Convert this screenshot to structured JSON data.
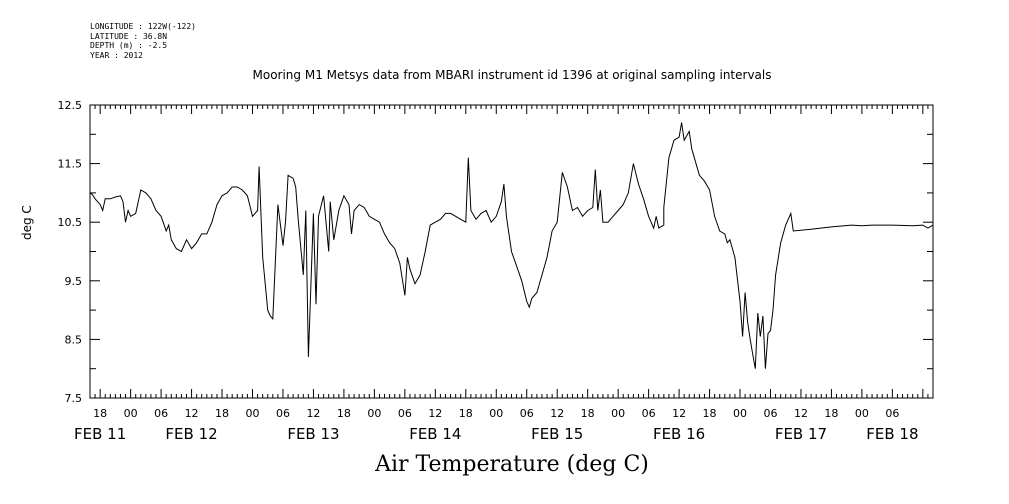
{
  "meta": {
    "longitude": "LONGITUDE : 122W(-122)",
    "latitude": "LATITUDE : 36.8N",
    "depth": "DEPTH (m) : -2.5",
    "year": "YEAR : 2012"
  },
  "chart_data": {
    "type": "line",
    "title": "Mooring M1 Metsys data from MBARI instrument id 1396 at original sampling intervals",
    "xlabel": "Air Temperature (deg C)",
    "ylabel": "deg C",
    "ylim": [
      7.5,
      12.5
    ],
    "xlim": [
      16,
      182
    ],
    "yticks": [
      7.5,
      8.5,
      9.5,
      10.5,
      11.5,
      12.5
    ],
    "ytick_labels": [
      "7.5",
      "8.5",
      "9.5",
      "10.5",
      "11.5",
      "12.5"
    ],
    "xtick_hour_labels": [
      "18",
      "00",
      "06",
      "12",
      "18",
      "00",
      "06",
      "12",
      "18",
      "00",
      "06",
      "12",
      "18",
      "00",
      "06",
      "12",
      "18",
      "00",
      "06",
      "12",
      "18",
      "00",
      "06",
      "12",
      "18",
      "00",
      "06"
    ],
    "date_labels": [
      {
        "text": "FEB 11",
        "x": 18
      },
      {
        "text": "FEB 12",
        "x": 36
      },
      {
        "text": "FEB 13",
        "x": 60
      },
      {
        "text": "FEB 14",
        "x": 84
      },
      {
        "text": "FEB 15",
        "x": 108
      },
      {
        "text": "FEB 16",
        "x": 132
      },
      {
        "text": "FEB 17",
        "x": 156
      },
      {
        "text": "FEB 18",
        "x": 174
      }
    ],
    "grid": false,
    "series": [
      {
        "values": [
          [
            16,
            11.0
          ],
          [
            16.5,
            10.97
          ],
          [
            17,
            10.9
          ],
          [
            17.5,
            10.85
          ],
          [
            18,
            10.8
          ],
          [
            18.5,
            10.7
          ],
          [
            19,
            10.9
          ],
          [
            20,
            10.9
          ],
          [
            21,
            10.93
          ],
          [
            22,
            10.95
          ],
          [
            22.5,
            10.85
          ],
          [
            23,
            10.5
          ],
          [
            23.5,
            10.7
          ],
          [
            24,
            10.6
          ],
          [
            25,
            10.65
          ],
          [
            26,
            11.05
          ],
          [
            27,
            11.0
          ],
          [
            28,
            10.9
          ],
          [
            29,
            10.7
          ],
          [
            30,
            10.6
          ],
          [
            31,
            10.35
          ],
          [
            31.5,
            10.45
          ],
          [
            32,
            10.2
          ],
          [
            33,
            10.05
          ],
          [
            34,
            10.0
          ],
          [
            35,
            10.2
          ],
          [
            36,
            10.05
          ],
          [
            37,
            10.15
          ],
          [
            38,
            10.3
          ],
          [
            39,
            10.3
          ],
          [
            40,
            10.5
          ],
          [
            41,
            10.8
          ],
          [
            42,
            10.95
          ],
          [
            43,
            11.0
          ],
          [
            44,
            11.1
          ],
          [
            45,
            11.1
          ],
          [
            46,
            11.05
          ],
          [
            47,
            10.95
          ],
          [
            48,
            10.6
          ],
          [
            49,
            10.7
          ],
          [
            49.3,
            11.45
          ],
          [
            50,
            9.9
          ],
          [
            51,
            9.0
          ],
          [
            51.5,
            8.9
          ],
          [
            52,
            8.85
          ],
          [
            53,
            10.8
          ],
          [
            54,
            10.1
          ],
          [
            54.5,
            10.5
          ],
          [
            55,
            11.3
          ],
          [
            56,
            11.25
          ],
          [
            56.5,
            11.1
          ],
          [
            57,
            10.55
          ],
          [
            58,
            9.6
          ],
          [
            58.5,
            10.7
          ],
          [
            59,
            8.2
          ],
          [
            60,
            10.65
          ],
          [
            60.5,
            9.1
          ],
          [
            61,
            10.6
          ],
          [
            62,
            10.95
          ],
          [
            63,
            10.0
          ],
          [
            63.3,
            10.85
          ],
          [
            64,
            10.2
          ],
          [
            65,
            10.7
          ],
          [
            66,
            10.95
          ],
          [
            67,
            10.8
          ],
          [
            67.5,
            10.3
          ],
          [
            68,
            10.7
          ],
          [
            69,
            10.8
          ],
          [
            70,
            10.75
          ],
          [
            71,
            10.6
          ],
          [
            72,
            10.55
          ],
          [
            73,
            10.5
          ],
          [
            74,
            10.3
          ],
          [
            75,
            10.15
          ],
          [
            76,
            10.05
          ],
          [
            77,
            9.8
          ],
          [
            78,
            9.25
          ],
          [
            78.5,
            9.9
          ],
          [
            79,
            9.7
          ],
          [
            80,
            9.45
          ],
          [
            81,
            9.6
          ],
          [
            82,
            10.0
          ],
          [
            83,
            10.45
          ],
          [
            84,
            10.5
          ],
          [
            85,
            10.55
          ],
          [
            86,
            10.65
          ],
          [
            87,
            10.65
          ],
          [
            88,
            10.6
          ],
          [
            89,
            10.55
          ],
          [
            90,
            10.5
          ],
          [
            90.5,
            11.6
          ],
          [
            91,
            10.7
          ],
          [
            92,
            10.55
          ],
          [
            93,
            10.65
          ],
          [
            94,
            10.7
          ],
          [
            95,
            10.5
          ],
          [
            96,
            10.6
          ],
          [
            97,
            10.85
          ],
          [
            97.5,
            11.15
          ],
          [
            98,
            10.6
          ],
          [
            99,
            10.0
          ],
          [
            100,
            9.75
          ],
          [
            101,
            9.5
          ],
          [
            102,
            9.15
          ],
          [
            102.5,
            9.05
          ],
          [
            103,
            9.2
          ],
          [
            104,
            9.3
          ],
          [
            105,
            9.6
          ],
          [
            106,
            9.9
          ],
          [
            107,
            10.35
          ],
          [
            108,
            10.5
          ],
          [
            109,
            11.35
          ],
          [
            110,
            11.1
          ],
          [
            111,
            10.7
          ],
          [
            112,
            10.75
          ],
          [
            113,
            10.6
          ],
          [
            114,
            10.7
          ],
          [
            115,
            10.75
          ],
          [
            115.5,
            11.4
          ],
          [
            116,
            10.7
          ],
          [
            116.5,
            11.05
          ],
          [
            117,
            10.5
          ],
          [
            118,
            10.5
          ],
          [
            119,
            10.6
          ],
          [
            120,
            10.7
          ],
          [
            121,
            10.8
          ],
          [
            122,
            11.0
          ],
          [
            123,
            11.5
          ],
          [
            124,
            11.15
          ],
          [
            125,
            10.9
          ],
          [
            126,
            10.6
          ],
          [
            127,
            10.4
          ],
          [
            127.5,
            10.6
          ],
          [
            128,
            10.4
          ],
          [
            129,
            10.45
          ],
          [
            129,
            10.75
          ],
          [
            130,
            11.6
          ],
          [
            131,
            11.9
          ],
          [
            132,
            11.95
          ],
          [
            132.5,
            12.2
          ],
          [
            133,
            11.9
          ],
          [
            134,
            12.05
          ],
          [
            134.5,
            11.75
          ],
          [
            135,
            11.6
          ],
          [
            136,
            11.3
          ],
          [
            137,
            11.2
          ],
          [
            138,
            11.05
          ],
          [
            139,
            10.6
          ],
          [
            140,
            10.35
          ],
          [
            141,
            10.3
          ],
          [
            141.5,
            10.15
          ],
          [
            142,
            10.2
          ],
          [
            143,
            9.9
          ],
          [
            144,
            9.15
          ],
          [
            144.5,
            8.55
          ],
          [
            145,
            9.3
          ],
          [
            145.5,
            8.8
          ],
          [
            146,
            8.5
          ],
          [
            146.5,
            8.25
          ],
          [
            147,
            8.0
          ],
          [
            147.5,
            8.95
          ],
          [
            148,
            8.55
          ],
          [
            148.5,
            8.9
          ],
          [
            149,
            8.0
          ],
          [
            149.5,
            8.6
          ],
          [
            150,
            8.65
          ],
          [
            150.5,
            9.0
          ],
          [
            151,
            9.6
          ],
          [
            152,
            10.15
          ],
          [
            153,
            10.45
          ],
          [
            154,
            10.65
          ],
          [
            154.5,
            10.35
          ],
          [
            158,
            10.38
          ],
          [
            162,
            10.42
          ],
          [
            166,
            10.45
          ],
          [
            168,
            10.44
          ],
          [
            170,
            10.45
          ],
          [
            174,
            10.45
          ],
          [
            178,
            10.44
          ],
          [
            180,
            10.45
          ],
          [
            181,
            10.4
          ],
          [
            182,
            10.45
          ]
        ]
      }
    ]
  }
}
